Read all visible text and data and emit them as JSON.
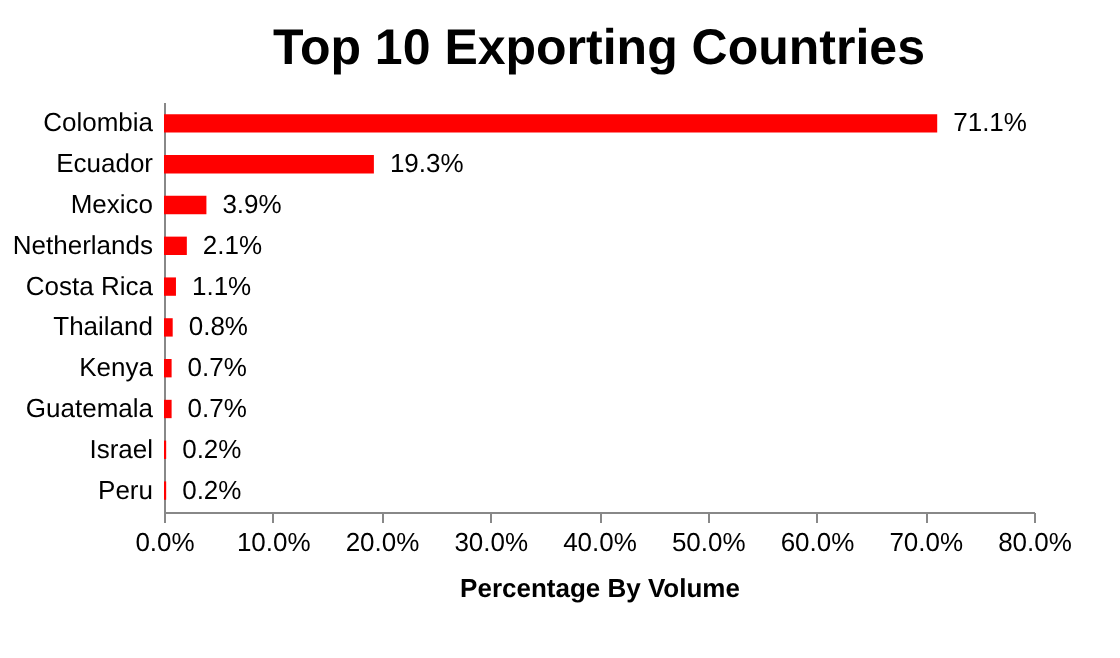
{
  "chart_data": {
    "type": "bar",
    "orientation": "horizontal",
    "title": "Top 10 Exporting Countries",
    "xlabel": "Percentage By Volume",
    "categories": [
      "Colombia",
      "Ecuador",
      "Mexico",
      "Netherlands",
      "Costa Rica",
      "Thailand",
      "Kenya",
      "Guatemala",
      "Israel",
      "Peru"
    ],
    "values": [
      71.1,
      19.3,
      3.9,
      2.1,
      1.1,
      0.8,
      0.7,
      0.7,
      0.2,
      0.2
    ],
    "value_labels": [
      "71.1%",
      "19.3%",
      "3.9%",
      "2.1%",
      "1.1%",
      "0.8%",
      "0.7%",
      "0.7%",
      "0.2%",
      "0.2%"
    ],
    "color": "#ff0000",
    "xlim": [
      0,
      80
    ],
    "xticks": [
      {
        "value": 0,
        "label": "0.0%"
      },
      {
        "value": 10,
        "label": "10.0%"
      },
      {
        "value": 20,
        "label": "20.0%"
      },
      {
        "value": 30,
        "label": "30.0%"
      },
      {
        "value": 40,
        "label": "40.0%"
      },
      {
        "value": 50,
        "label": "50.0%"
      },
      {
        "value": 60,
        "label": "60.0%"
      },
      {
        "value": 70,
        "label": "70.0%"
      },
      {
        "value": 80,
        "label": "80.0%"
      }
    ],
    "grid": false
  }
}
